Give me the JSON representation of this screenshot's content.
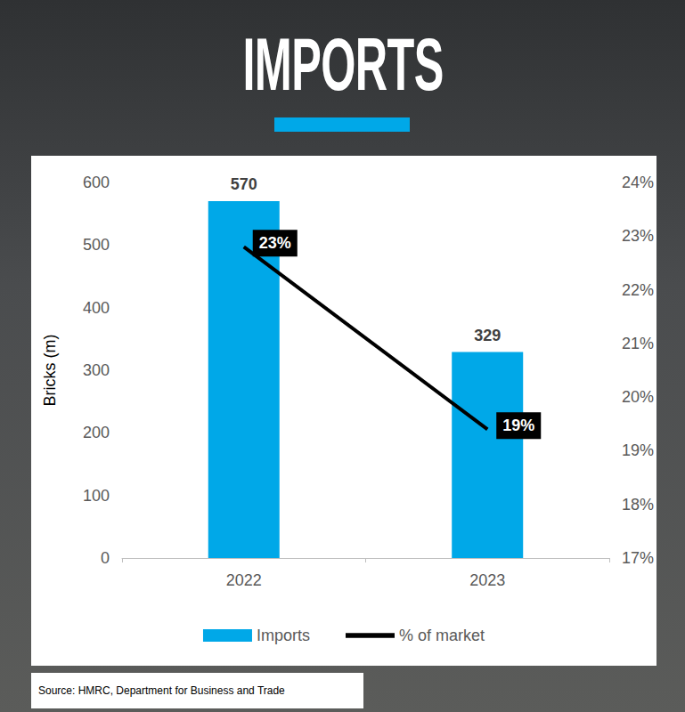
{
  "chart_data": {
    "type": "bar",
    "title": "IMPORTS",
    "source": "Source: HMRC, Department for Business and Trade",
    "y_label": "Bricks (m)",
    "categories": [
      "2022",
      "2023"
    ],
    "series": [
      {
        "name": "Imports",
        "type": "bar",
        "color": "#00a8e8",
        "values": [
          570,
          329
        ]
      },
      {
        "name": "% of market",
        "type": "line",
        "color": "#000000",
        "axis": "y2",
        "values": [
          22.8,
          19.4
        ],
        "value_labels": [
          "23%",
          "19%"
        ]
      }
    ],
    "ylim": [
      0,
      600
    ],
    "yticks": [
      0,
      100,
      200,
      300,
      400,
      500,
      600
    ],
    "y2lim": [
      17,
      24
    ],
    "y2ticks": [
      {
        "value": 17,
        "label": "17%"
      },
      {
        "value": 18,
        "label": "18%"
      },
      {
        "value": 19,
        "label": "19%"
      },
      {
        "value": 20,
        "label": "20%"
      },
      {
        "value": 21,
        "label": "21%"
      },
      {
        "value": 22,
        "label": "22%"
      },
      {
        "value": 23,
        "label": "23%"
      },
      {
        "value": 24,
        "label": "24%"
      }
    ],
    "grid": false,
    "legend": "bottom",
    "data_labels": true
  }
}
